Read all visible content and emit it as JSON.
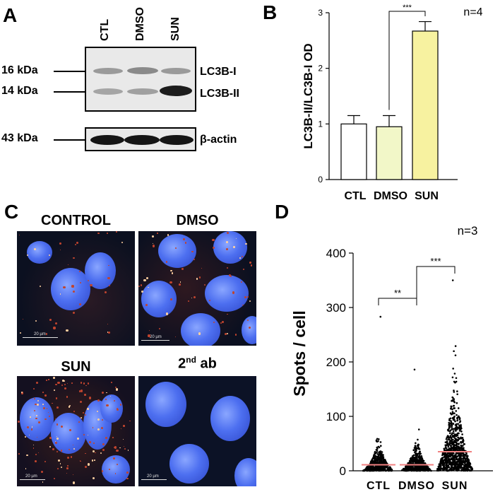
{
  "panels": {
    "a": "A",
    "b": "B",
    "c": "C",
    "d": "D"
  },
  "blot": {
    "lanes": [
      "CTL",
      "DMSO",
      "SUN"
    ],
    "markers": [
      "16 kDa",
      "14 kDa",
      "43 kDa"
    ],
    "bands": [
      "LC3B-I",
      "LC3B-II",
      "β-actin"
    ]
  },
  "chart_data": [
    {
      "type": "bar",
      "categories": [
        "CTL",
        "DMSO",
        "SUN"
      ],
      "values": [
        1.0,
        0.95,
        2.67
      ],
      "errors": [
        0.15,
        0.2,
        0.17
      ],
      "ylabel": "LC3B-II/LC3B-I OD",
      "ylim": [
        0,
        3
      ],
      "yticks": [
        0,
        1,
        2,
        3
      ],
      "n_label": "n=4",
      "significance": [
        {
          "from": "DMSO",
          "to": "SUN",
          "label": "***"
        }
      ],
      "colors": [
        "#ffffff",
        "#f2f7c8",
        "#f7f2a0"
      ]
    },
    {
      "type": "scatter",
      "categories": [
        "CTL",
        "DMSO",
        "SUN"
      ],
      "means": [
        11,
        11,
        35
      ],
      "max": [
        283,
        186,
        350
      ],
      "ylabel": "Spots / cell",
      "ylim": [
        0,
        400
      ],
      "yticks": [
        0,
        100,
        200,
        300,
        400
      ],
      "n_label": "n=3",
      "significance": [
        {
          "from": "CTL",
          "to": "DMSO",
          "label": "**"
        },
        {
          "from": "DMSO",
          "to": "SUN",
          "label": "***"
        }
      ],
      "mean_color": "#f08080"
    }
  ],
  "images": {
    "labels": [
      "CONTROL",
      "DMSO",
      "SUN",
      "2"
    ],
    "second_sup": "nd",
    "second_rest": " ab",
    "scale": "20 µm"
  }
}
